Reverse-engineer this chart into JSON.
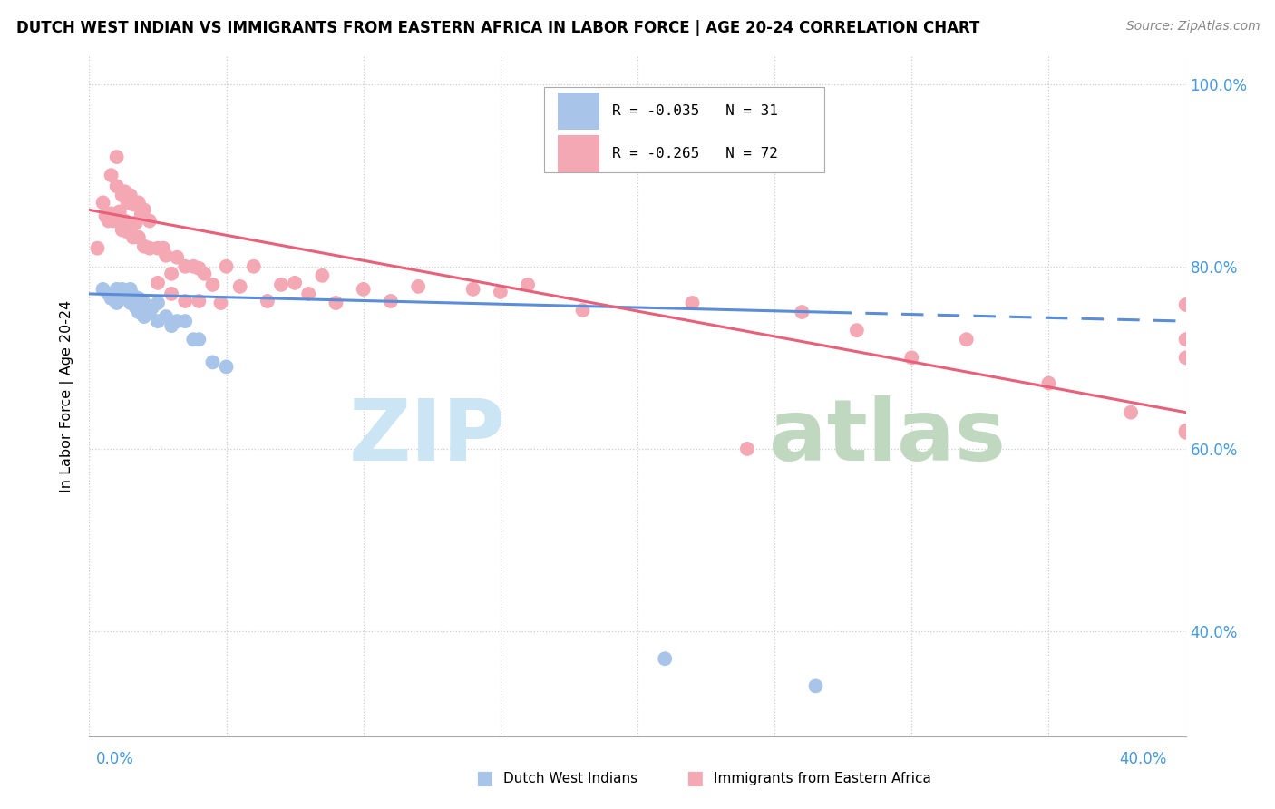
{
  "title": "DUTCH WEST INDIAN VS IMMIGRANTS FROM EASTERN AFRICA IN LABOR FORCE | AGE 20-24 CORRELATION CHART",
  "source": "Source: ZipAtlas.com",
  "ylabel": "In Labor Force | Age 20-24",
  "xlim": [
    0.0,
    0.4
  ],
  "ylim": [
    0.285,
    1.03
  ],
  "blue_color": "#a8c4e8",
  "pink_color": "#f4a8b4",
  "blue_line_color": "#5b8dd9",
  "pink_line_color": "#e8607a",
  "blue_line_x0": 0.0,
  "blue_line_y0": 0.77,
  "blue_line_x1": 0.4,
  "blue_line_y1": 0.74,
  "pink_line_x0": 0.0,
  "pink_line_y0": 0.862,
  "pink_line_x1": 0.4,
  "pink_line_y1": 0.64,
  "blue_scatter_x": [
    0.005,
    0.007,
    0.008,
    0.01,
    0.01,
    0.012,
    0.013,
    0.014,
    0.015,
    0.015,
    0.016,
    0.017,
    0.018,
    0.018,
    0.019,
    0.02,
    0.02,
    0.022,
    0.023,
    0.025,
    0.025,
    0.028,
    0.03,
    0.032,
    0.035,
    0.038,
    0.04,
    0.045,
    0.05,
    0.21,
    0.265
  ],
  "blue_scatter_y": [
    0.775,
    0.77,
    0.765,
    0.775,
    0.76,
    0.775,
    0.77,
    0.765,
    0.775,
    0.76,
    0.768,
    0.755,
    0.765,
    0.75,
    0.76,
    0.76,
    0.745,
    0.75,
    0.755,
    0.76,
    0.74,
    0.745,
    0.735,
    0.74,
    0.74,
    0.72,
    0.72,
    0.695,
    0.69,
    0.37,
    0.34
  ],
  "pink_scatter_x": [
    0.003,
    0.005,
    0.006,
    0.007,
    0.008,
    0.008,
    0.009,
    0.01,
    0.01,
    0.011,
    0.012,
    0.012,
    0.013,
    0.013,
    0.014,
    0.014,
    0.015,
    0.015,
    0.016,
    0.016,
    0.017,
    0.018,
    0.018,
    0.019,
    0.02,
    0.02,
    0.022,
    0.022,
    0.025,
    0.025,
    0.027,
    0.028,
    0.03,
    0.03,
    0.032,
    0.035,
    0.035,
    0.038,
    0.04,
    0.04,
    0.042,
    0.045,
    0.048,
    0.05,
    0.055,
    0.06,
    0.065,
    0.07,
    0.075,
    0.08,
    0.085,
    0.09,
    0.1,
    0.11,
    0.12,
    0.14,
    0.15,
    0.16,
    0.18,
    0.22,
    0.24,
    0.26,
    0.28,
    0.3,
    0.32,
    0.35,
    0.38,
    0.4,
    0.4,
    0.4,
    0.4,
    0.4
  ],
  "pink_scatter_y": [
    0.82,
    0.87,
    0.855,
    0.85,
    0.9,
    0.858,
    0.85,
    0.92,
    0.888,
    0.86,
    0.878,
    0.84,
    0.882,
    0.85,
    0.87,
    0.838,
    0.878,
    0.84,
    0.868,
    0.832,
    0.848,
    0.87,
    0.832,
    0.858,
    0.862,
    0.822,
    0.85,
    0.82,
    0.82,
    0.782,
    0.82,
    0.812,
    0.792,
    0.77,
    0.81,
    0.8,
    0.762,
    0.8,
    0.798,
    0.762,
    0.792,
    0.78,
    0.76,
    0.8,
    0.778,
    0.8,
    0.762,
    0.78,
    0.782,
    0.77,
    0.79,
    0.76,
    0.775,
    0.762,
    0.778,
    0.775,
    0.772,
    0.78,
    0.752,
    0.76,
    0.6,
    0.75,
    0.73,
    0.7,
    0.72,
    0.672,
    0.64,
    0.7,
    0.758,
    0.72,
    0.62,
    0.618
  ],
  "watermark_zip_color": "#cce5f5",
  "watermark_atlas_color": "#c0d8c0"
}
